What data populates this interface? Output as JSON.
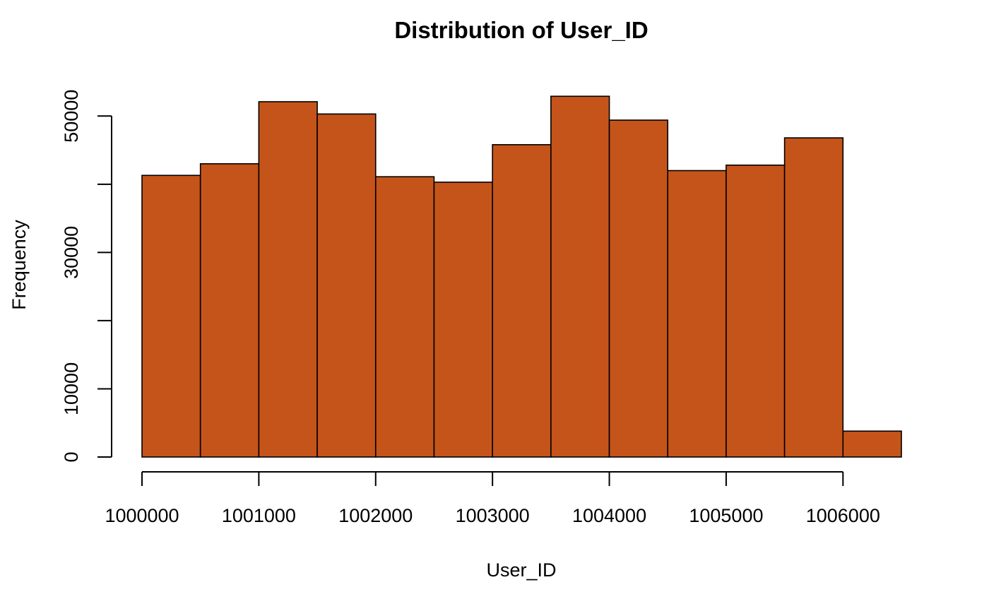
{
  "chart_data": {
    "type": "bar",
    "title": "Distribution of User_ID",
    "xlabel": "User_ID",
    "ylabel": "Frequency",
    "bar_color": "#C5541A",
    "bin_edges": [
      1000000,
      1000500,
      1001000,
      1001500,
      1002000,
      1002500,
      1003000,
      1003500,
      1004000,
      1004500,
      1005000,
      1005500,
      1006000,
      1006500
    ],
    "values": [
      41300,
      43000,
      52100,
      50300,
      41100,
      40300,
      45800,
      52900,
      49400,
      42000,
      42800,
      46800,
      3800
    ],
    "xlim": [
      1000000,
      1006500
    ],
    "ylim": [
      0,
      55000
    ],
    "x_ticks": [
      1000000,
      1001000,
      1002000,
      1003000,
      1004000,
      1005000,
      1006000
    ],
    "x_tick_labels": [
      "1000000",
      "1001000",
      "1002000",
      "1003000",
      "1004000",
      "1005000",
      "1006000"
    ],
    "y_ticks": [
      0,
      10000,
      20000,
      30000,
      40000,
      50000
    ],
    "y_tick_labels": [
      "0",
      "10000",
      "",
      "30000",
      "",
      "50000"
    ],
    "grid": false,
    "legend": "none"
  }
}
